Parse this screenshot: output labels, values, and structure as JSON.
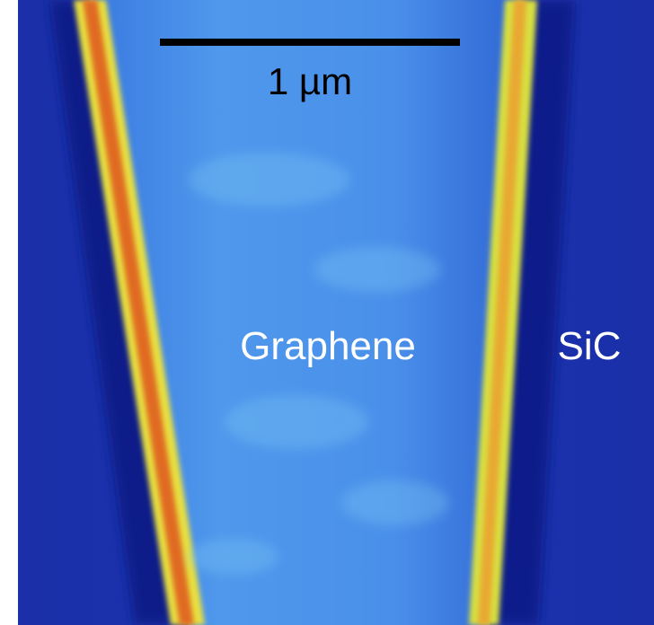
{
  "scale_bar": {
    "label": "1 µm"
  },
  "labels": {
    "graphene": "Graphene",
    "substrate": "SiC"
  }
}
